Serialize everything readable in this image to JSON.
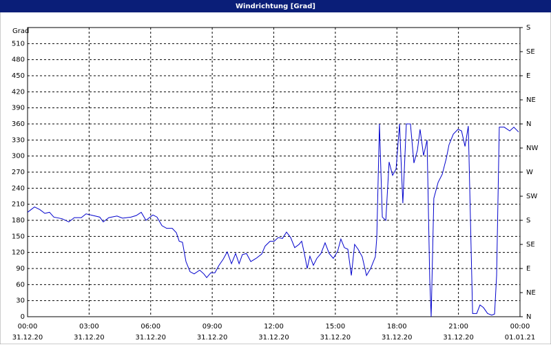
{
  "chart_data": {
    "type": "line",
    "title": "Windrichtung [Grad]",
    "ylabel": "Grad",
    "xlim": [
      0,
      24
    ],
    "ylim": [
      0,
      540
    ],
    "y2lim": [
      0,
      540
    ],
    "xticks": [
      {
        "value": 0,
        "label": "00:00"
      },
      {
        "value": 3,
        "label": "03:00"
      },
      {
        "value": 6,
        "label": "06:00"
      },
      {
        "value": 9,
        "label": "09:00"
      },
      {
        "value": 12,
        "label": "12:00"
      },
      {
        "value": 15,
        "label": "15:00"
      },
      {
        "value": 18,
        "label": "18:00"
      },
      {
        "value": 21,
        "label": "21:00"
      },
      {
        "value": 24,
        "label": "00:00"
      }
    ],
    "xtick_dates": [
      "31.12.20",
      "31.12.20",
      "31.12.20",
      "31.12.20",
      "31.12.20",
      "31.12.20",
      "31.12.20",
      "31.12.20",
      "01.01.21"
    ],
    "yticks": [
      0,
      30,
      60,
      90,
      120,
      150,
      180,
      210,
      240,
      270,
      300,
      330,
      360,
      390,
      420,
      450,
      480,
      510
    ],
    "y2ticks": [
      {
        "value": 0,
        "label": "N"
      },
      {
        "value": 45,
        "label": "NE"
      },
      {
        "value": 90,
        "label": "E"
      },
      {
        "value": 135,
        "label": "SE"
      },
      {
        "value": 180,
        "label": "S"
      },
      {
        "value": 225,
        "label": "SW"
      },
      {
        "value": 270,
        "label": "W"
      },
      {
        "value": 315,
        "label": "NW"
      },
      {
        "value": 360,
        "label": "N"
      },
      {
        "value": 405,
        "label": "NE"
      },
      {
        "value": 450,
        "label": "E"
      },
      {
        "value": 495,
        "label": "SE"
      },
      {
        "value": 540,
        "label": "S"
      }
    ],
    "grid": true,
    "x": [
      0,
      0.34,
      0.6,
      0.84,
      1.07,
      1.28,
      1.68,
      2.01,
      2.28,
      2.62,
      2.85,
      3.19,
      3.52,
      3.69,
      3.96,
      4.36,
      4.63,
      5.04,
      5.3,
      5.54,
      5.77,
      6.11,
      6.31,
      6.55,
      6.78,
      7.05,
      7.25,
      7.39,
      7.55,
      7.72,
      7.92,
      8.12,
      8.39,
      8.59,
      8.73,
      8.93,
      9.13,
      9.33,
      9.53,
      9.73,
      9.94,
      10.14,
      10.31,
      10.47,
      10.67,
      10.88,
      11.14,
      11.41,
      11.58,
      11.82,
      12.02,
      12.22,
      12.42,
      12.62,
      12.82,
      13.02,
      13.23,
      13.36,
      13.49,
      13.63,
      13.76,
      13.93,
      14.1,
      14.3,
      14.5,
      14.7,
      14.9,
      15.11,
      15.27,
      15.44,
      15.61,
      15.78,
      15.94,
      16.11,
      16.31,
      16.52,
      16.72,
      16.95,
      17.02,
      17.15,
      17.29,
      17.46,
      17.62,
      17.79,
      17.96,
      18.13,
      18.29,
      18.46,
      18.66,
      18.83,
      19.0,
      19.13,
      19.3,
      19.47,
      19.6,
      19.67,
      19.8,
      20.01,
      20.21,
      20.41,
      20.54,
      20.75,
      20.98,
      21.15,
      21.32,
      21.48,
      21.69,
      21.89,
      22.05,
      22.22,
      22.42,
      22.62,
      22.76,
      22.86,
      22.99,
      23.23,
      23.5,
      23.7,
      23.93
    ],
    "series": [
      {
        "color": "#0000cc",
        "values": [
          195,
          205,
          200,
          193,
          195,
          186,
          183,
          177,
          185,
          185,
          192,
          189,
          186,
          177,
          185,
          188,
          184,
          186,
          189,
          195,
          180,
          190,
          186,
          170,
          165,
          165,
          157,
          141,
          139,
          103,
          84,
          80,
          87,
          80,
          73,
          82,
          82,
          96,
          107,
          121,
          99,
          118,
          99,
          116,
          118,
          103,
          109,
          117,
          132,
          141,
          141,
          148,
          146,
          158,
          148,
          129,
          135,
          141,
          118,
          90,
          113,
          96,
          109,
          118,
          138,
          118,
          109,
          122,
          145,
          129,
          126,
          77,
          135,
          126,
          112,
          77,
          90,
          112,
          148,
          360,
          186,
          180,
          289,
          264,
          276,
          360,
          212,
          360,
          360,
          287,
          311,
          350,
          301,
          330,
          71,
          0,
          221,
          251,
          266,
          296,
          321,
          341,
          350,
          347,
          318,
          356,
          6,
          6,
          22,
          17,
          6,
          3,
          5,
          77,
          354,
          354,
          347,
          354,
          345
        ]
      }
    ]
  }
}
